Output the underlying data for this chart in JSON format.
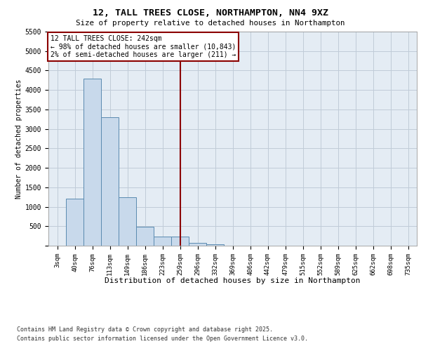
{
  "title": "12, TALL TREES CLOSE, NORTHAMPTON, NN4 9XZ",
  "subtitle": "Size of property relative to detached houses in Northampton",
  "xlabel": "Distribution of detached houses by size in Northampton",
  "ylabel": "Number of detached properties",
  "bar_categories": [
    "3sqm",
    "40sqm",
    "76sqm",
    "113sqm",
    "149sqm",
    "186sqm",
    "223sqm",
    "259sqm",
    "296sqm",
    "332sqm",
    "369sqm",
    "406sqm",
    "442sqm",
    "479sqm",
    "515sqm",
    "552sqm",
    "589sqm",
    "625sqm",
    "662sqm",
    "698sqm",
    "735sqm"
  ],
  "bar_values": [
    0,
    1200,
    4300,
    3300,
    1250,
    480,
    230,
    230,
    70,
    30,
    0,
    0,
    0,
    0,
    0,
    0,
    0,
    0,
    0,
    0,
    0
  ],
  "bar_color": "#c8d9eb",
  "bar_edge_color": "#5a8ab0",
  "grid_color": "#c0ccd8",
  "background_color": "#e4ecf4",
  "vline_color": "#8b0000",
  "annotation_text": "12 TALL TREES CLOSE: 242sqm\n← 98% of detached houses are smaller (10,843)\n2% of semi-detached houses are larger (211) →",
  "annotation_box_color": "#8b0000",
  "ylim": [
    0,
    5500
  ],
  "yticks": [
    0,
    500,
    1000,
    1500,
    2000,
    2500,
    3000,
    3500,
    4000,
    4500,
    5000,
    5500
  ],
  "footer_line1": "Contains HM Land Registry data © Crown copyright and database right 2025.",
  "footer_line2": "Contains public sector information licensed under the Open Government Licence v3.0."
}
